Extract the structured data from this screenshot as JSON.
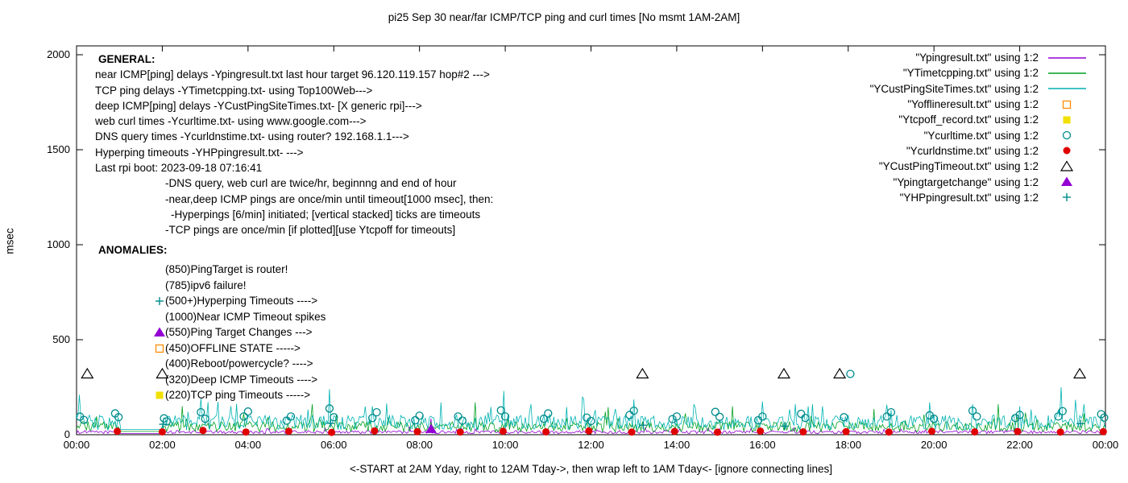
{
  "title": "pi25 Sep 30 near/far ICMP/TCP ping and curl times [No msmt 1AM-2AM]",
  "xlabel": "<-START at 2AM Yday, right to 12AM Tday->, then wrap left to 1AM Tday<- [ignore connecting lines]",
  "ylabel": "msec",
  "general": {
    "heading": "GENERAL:",
    "lines": [
      {
        "text": "near ICMP[ping] delays -Ypingresult.txt last hour target 96.120.119.157 hop#2 --->",
        "indent": 0
      },
      {
        "text": "TCP ping delays -YTimetcpping.txt- using Top100Web--->",
        "indent": 0
      },
      {
        "text": "deep ICMP[ping] delays -YCustPingSiteTimes.txt- [X generic rpi]--->",
        "indent": 0
      },
      {
        "text": "web curl times -Ycurltime.txt- using www.google.com--->",
        "indent": 0
      },
      {
        "text": "DNS query times -Ycurldnstime.txt- using router? 192.168.1.1--->",
        "indent": 0
      },
      {
        "text": "Hyperping timeouts -YHPpingresult.txt- --->",
        "indent": 0
      },
      {
        "text": "Last rpi boot: 2023-09-18 07:16:41",
        "indent": 0
      },
      {
        "text": "-DNS query, web curl are twice/hr, beginnng and end of hour",
        "indent": 1
      },
      {
        "text": "-near,deep ICMP pings are once/min until timeout[1000 msec], then:",
        "indent": 1
      },
      {
        "text": "-Hyperpings [6/min] initiated; [vertical stacked] ticks are timeouts",
        "indent": 2
      },
      {
        "text": "-TCP pings are once/min [if plotted][use Ytcpoff for timeouts]",
        "indent": 1
      }
    ]
  },
  "anomalies": {
    "heading": "ANOMALIES:",
    "items": [
      {
        "icon": "none",
        "color": "",
        "label": "(850)PingTarget is router!"
      },
      {
        "icon": "none",
        "color": "",
        "label": "(785)ipv6 failure!"
      },
      {
        "icon": "plus",
        "color": "#008b8b",
        "label": "(500+)Hyperping Timeouts ---->"
      },
      {
        "icon": "none",
        "color": "",
        "label": "(1000)Near ICMP Timeout spikes"
      },
      {
        "icon": "triangle-filled",
        "color": "#9400d3",
        "label": "(550)Ping Target Changes --->"
      },
      {
        "icon": "square-open",
        "color": "#ff8c00",
        "label": "(450)OFFLINE STATE ----->"
      },
      {
        "icon": "none",
        "color": "",
        "label": "(400)Reboot/powercycle? ---->"
      },
      {
        "icon": "none",
        "color": "",
        "label": "(320)Deep ICMP Timeouts ---->"
      },
      {
        "icon": "square-filled",
        "color": "#f0e000",
        "label": "(220)TCP ping Timeouts ----->"
      }
    ]
  },
  "legend": {
    "items": [
      {
        "label": "\"Ypingresult.txt\" using 1:2",
        "sample": "line",
        "color": "#9400d3"
      },
      {
        "label": "\"YTimetcpping.txt\" using 1:2",
        "sample": "line",
        "color": "#00a020"
      },
      {
        "label": "\"YCustPingSiteTimes.txt\" using 1:2",
        "sample": "line",
        "color": "#00b2b2"
      },
      {
        "label": "\"Yofflineresult.txt\" using 1:2",
        "sample": "square-open",
        "color": "#ff8c00"
      },
      {
        "label": "\"Ytcpoff_record.txt\" using 1:2",
        "sample": "square-filled",
        "color": "#f0e000"
      },
      {
        "label": "\"Ycurltime.txt\" using 1:2",
        "sample": "circle-open",
        "color": "#008b8b"
      },
      {
        "label": "\"Ycurldnstime.txt\" using 1:2",
        "sample": "circle-filled",
        "color": "#e00000"
      },
      {
        "label": "\"YCustPingTimeout.txt\" using 1:2",
        "sample": "triangle-open",
        "color": "#000000"
      },
      {
        "label": "\"Ypingtargetchange\" using 1:2",
        "sample": "triangle-filled",
        "color": "#9400d3"
      },
      {
        "label": "\"YHPpingresult.txt\" using 1:2",
        "sample": "plus",
        "color": "#008b8b"
      }
    ]
  },
  "chart_data": {
    "type": "line",
    "title": "pi25 Sep 30 near/far ICMP/TCP ping and curl times [No msmt 1AM-2AM]",
    "xlabel": "<-START at 2AM Yday, right to 12AM Tday->, then wrap left to 1AM Tday<- [ignore connecting lines]",
    "ylabel": "msec",
    "xlim": [
      0,
      24
    ],
    "ylim": [
      0,
      2000
    ],
    "x_ticks": [
      "00:00",
      "02:00",
      "04:00",
      "06:00",
      "08:00",
      "10:00",
      "12:00",
      "14:00",
      "16:00",
      "18:00",
      "20:00",
      "22:00",
      "00:00"
    ],
    "y_ticks": [
      "0",
      "500",
      "1000",
      "1500",
      "2000"
    ],
    "gap_hours": [
      1,
      2
    ],
    "series": [
      {
        "name": "Ypingresult.txt",
        "style": "line",
        "color": "#9400d3",
        "baseline": {
          "mean": 12,
          "amp": 8
        },
        "spikes": [
          [
            8.27,
            85
          ]
        ]
      },
      {
        "name": "YTimetcpping.txt",
        "style": "line",
        "color": "#00a020",
        "baseline": {
          "mean": 35,
          "amp": 28
        },
        "spikes": [
          [
            2.45,
            150
          ],
          [
            5.5,
            160
          ],
          [
            9.3,
            170
          ],
          [
            12.4,
            145
          ],
          [
            15.3,
            150
          ],
          [
            18.6,
            135
          ],
          [
            21.5,
            160
          ]
        ]
      },
      {
        "name": "YCustPingSiteTimes.txt",
        "style": "line",
        "color": "#00b2b2",
        "baseline": {
          "mean": 55,
          "amp": 40
        },
        "spikes": [
          [
            0.05,
            210
          ],
          [
            2.9,
            190
          ],
          [
            3.6,
            150
          ],
          [
            5.9,
            240
          ],
          [
            6.9,
            150
          ],
          [
            8.5,
            170
          ],
          [
            9.95,
            230
          ],
          [
            10.6,
            160
          ],
          [
            11.8,
            200
          ],
          [
            13.0,
            185
          ],
          [
            14.4,
            160
          ],
          [
            16.0,
            175
          ],
          [
            17.4,
            150
          ],
          [
            19.9,
            170
          ],
          [
            20.9,
            160
          ],
          [
            22.0,
            150
          ],
          [
            22.95,
            250
          ],
          [
            23.5,
            160
          ]
        ]
      },
      {
        "name": "Yofflineresult.txt",
        "style": "square-open",
        "color": "#ff8c00",
        "points": []
      },
      {
        "name": "Ytcpoff_record.txt",
        "style": "square-filled",
        "color": "#f0e000",
        "points": []
      },
      {
        "name": "Ycurltime.txt",
        "style": "circle-open",
        "color": "#008b8b",
        "points": [
          [
            0.08,
            95
          ],
          [
            0.17,
            78
          ],
          [
            0.9,
            112
          ],
          [
            0.98,
            92
          ],
          [
            2.04,
            86
          ],
          [
            2.1,
            70
          ],
          [
            2.9,
            118
          ],
          [
            3.0,
            84
          ],
          [
            3.9,
            96
          ],
          [
            4.0,
            122
          ],
          [
            4.9,
            74
          ],
          [
            5.0,
            96
          ],
          [
            5.9,
            138
          ],
          [
            6.0,
            92
          ],
          [
            6.9,
            88
          ],
          [
            7.0,
            118
          ],
          [
            7.9,
            76
          ],
          [
            8.0,
            100
          ],
          [
            8.9,
            96
          ],
          [
            9.0,
            74
          ],
          [
            9.9,
            128
          ],
          [
            10.0,
            96
          ],
          [
            10.9,
            84
          ],
          [
            11.0,
            112
          ],
          [
            11.9,
            90
          ],
          [
            12.0,
            72
          ],
          [
            12.9,
            104
          ],
          [
            13.0,
            126
          ],
          [
            13.9,
            82
          ],
          [
            14.0,
            96
          ],
          [
            14.9,
            120
          ],
          [
            15.0,
            94
          ],
          [
            15.9,
            76
          ],
          [
            16.0,
            96
          ],
          [
            16.9,
            110
          ],
          [
            17.0,
            88
          ],
          [
            17.9,
            92
          ],
          [
            18.05,
            320
          ],
          [
            18.9,
            96
          ],
          [
            19.0,
            118
          ],
          [
            19.9,
            102
          ],
          [
            20.0,
            84
          ],
          [
            20.9,
            126
          ],
          [
            21.0,
            96
          ],
          [
            21.9,
            88
          ],
          [
            22.0,
            104
          ],
          [
            22.9,
            96
          ],
          [
            23.0,
            124
          ],
          [
            23.9,
            108
          ],
          [
            23.97,
            90
          ]
        ]
      },
      {
        "name": "Ycurldnstime.txt",
        "style": "circle-filled",
        "color": "#e00000",
        "points": [
          [
            0.95,
            18
          ],
          [
            2.0,
            15
          ],
          [
            2.95,
            22
          ],
          [
            3.95,
            14
          ],
          [
            4.95,
            18
          ],
          [
            5.95,
            12
          ],
          [
            6.95,
            20
          ],
          [
            7.95,
            16
          ],
          [
            8.95,
            14
          ],
          [
            9.95,
            18
          ],
          [
            10.95,
            15
          ],
          [
            11.95,
            20
          ],
          [
            12.95,
            14
          ],
          [
            13.95,
            17
          ],
          [
            14.95,
            13
          ],
          [
            15.95,
            19
          ],
          [
            16.95,
            15
          ],
          [
            17.95,
            16
          ],
          [
            18.95,
            14
          ],
          [
            19.95,
            18
          ],
          [
            20.95,
            15
          ],
          [
            21.95,
            17
          ],
          [
            22.95,
            14
          ],
          [
            23.95,
            16
          ]
        ]
      },
      {
        "name": "YCustPingTimeout.txt",
        "style": "triangle-open",
        "color": "#000000",
        "points": [
          [
            0.25,
            320
          ],
          [
            2.0,
            320
          ],
          [
            13.2,
            320
          ],
          [
            16.5,
            320
          ],
          [
            17.8,
            320
          ],
          [
            23.4,
            320
          ]
        ]
      },
      {
        "name": "Ypingtargetchange",
        "style": "triangle-filled",
        "color": "#9400d3",
        "points": [
          [
            8.27,
            30
          ]
        ]
      },
      {
        "name": "YHPpingresult.txt",
        "style": "plus",
        "color": "#008b8b",
        "points": [
          [
            2.02,
            55
          ],
          [
            5.92,
            60
          ],
          [
            13.22,
            50
          ],
          [
            16.52,
            45
          ],
          [
            23.42,
            58
          ]
        ]
      }
    ]
  }
}
